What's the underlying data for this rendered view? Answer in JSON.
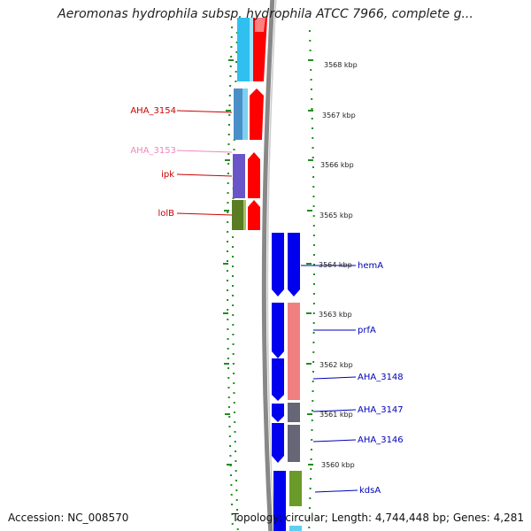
{
  "title": "Aeromonas hydrophila subsp. hydrophila ATCC 7966, complete g...",
  "footer": {
    "accession": "Accession: NC_008570",
    "topology": "Topology: circular; Length: 4,744,448 bp; Genes: 4,281"
  },
  "colors": {
    "left_gene_label": "#cc0000",
    "left_gene_label_pale": "#ee88bb",
    "right_gene_label": "#0000bb",
    "ruler_tick": "#228b22",
    "backbone": "#888888"
  },
  "kbp_ticks": [
    "3568 kbp",
    "3567 kbp",
    "3566 kbp",
    "3565 kbp",
    "3564 kbp",
    "3563 kbp",
    "3562 kbp",
    "3561 kbp",
    "3560 kbp"
  ],
  "left_labels": [
    {
      "text": "AHA_3154",
      "pale": false
    },
    {
      "text": "AHA_3153",
      "pale": true
    },
    {
      "text": "ipk",
      "pale": false
    },
    {
      "text": "lolB",
      "pale": false
    }
  ],
  "right_labels": [
    "hemA",
    "prfA",
    "AHA_3148",
    "AHA_3147",
    "AHA_3146",
    "kdsA"
  ],
  "feature_colors": [
    "#2fc0f0",
    "#4a8fc8",
    "#6a55c8",
    "#6a8c2a",
    "#ff0000",
    "#0000ee",
    "#f08080",
    "#666677",
    "#6a9a2a"
  ]
}
